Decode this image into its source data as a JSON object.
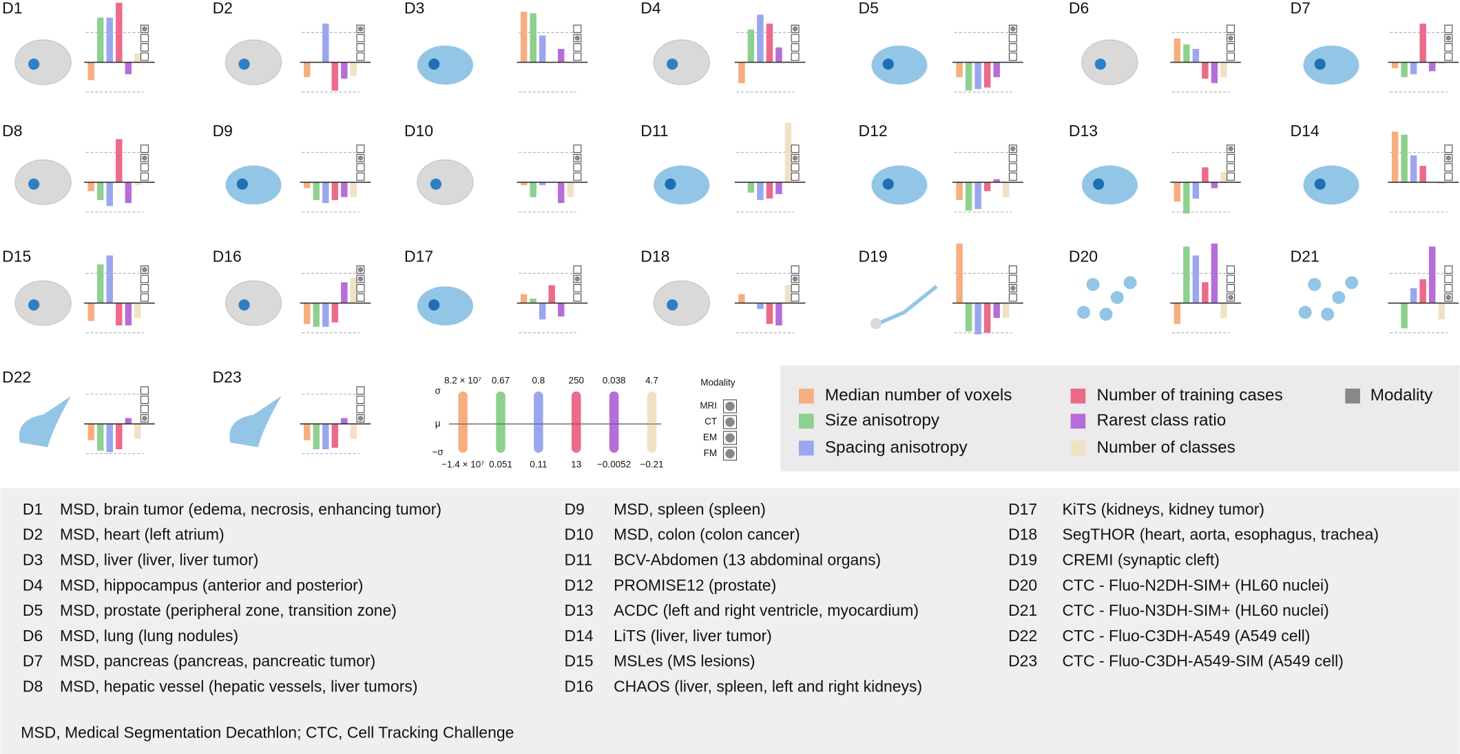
{
  "series_names": [
    "Median number of voxels",
    "Size anisotropy",
    "Spacing anisotropy",
    "Number of training cases",
    "Rarest class ratio",
    "Number of classes"
  ],
  "colors": [
    "#f5ae7f",
    "#8ed08e",
    "#9aa6ee",
    "#ec6a8a",
    "#b56ed8",
    "#f0e1c5"
  ],
  "modality_label": "Modality",
  "modality_color": "#888888",
  "scale": {
    "sigma_labels": [
      "σ",
      "μ",
      "−σ"
    ],
    "top": [
      "8.2 × 10⁷",
      "0.67",
      "0.8",
      "250",
      "0.038",
      "4.7"
    ],
    "bottom": [
      "−1.4 × 10⁷",
      "0.051",
      "0.11",
      "13",
      "−0.0052",
      "−0.21"
    ]
  },
  "modality_key": {
    "title": "Modality",
    "items": [
      "MRI",
      "CT",
      "EM",
      "FM"
    ]
  },
  "datasets": [
    {
      "id": "D1",
      "description": "MSD, brain tumor (edema, necrosis, enhancing tumor)",
      "values": [
        -0.6,
        1.5,
        1.5,
        2.0,
        -0.4,
        0.3
      ],
      "modality": [
        "MRI"
      ]
    },
    {
      "id": "D2",
      "description": "MSD, heart (left atrium)",
      "values": [
        -0.5,
        0,
        1.3,
        -0.95,
        -0.55,
        -0.45
      ],
      "modality": [
        "MRI"
      ]
    },
    {
      "id": "D3",
      "description": "MSD, liver (liver, liver tumor)",
      "values": [
        1.7,
        1.65,
        0.9,
        0,
        0.45,
        0
      ],
      "modality": [
        "CT"
      ]
    },
    {
      "id": "D4",
      "description": "MSD, hippocampus (anterior and posterior)",
      "values": [
        -0.7,
        1.1,
        1.6,
        1.3,
        0.5,
        0.05
      ],
      "modality": [
        "MRI"
      ]
    },
    {
      "id": "D5",
      "description": "MSD, prostate (peripheral zone, transition zone)",
      "values": [
        -0.5,
        -0.95,
        -0.9,
        -0.85,
        -0.5,
        0
      ],
      "modality": [
        "MRI"
      ]
    },
    {
      "id": "D6",
      "description": "MSD, lung (lung nodules)",
      "values": [
        0.8,
        0.6,
        0.45,
        -0.55,
        -0.7,
        -0.5
      ],
      "modality": [
        "CT"
      ]
    },
    {
      "id": "D7",
      "description": "MSD, pancreas (pancreas, pancreatic tumor)",
      "values": [
        -0.2,
        -0.5,
        -0.4,
        1.3,
        -0.3,
        -0.05
      ],
      "modality": [
        "CT"
      ]
    },
    {
      "id": "D8",
      "description": "MSD, hepatic vessel (hepatic vessels, liver tumors)",
      "values": [
        -0.3,
        -0.6,
        -0.8,
        1.45,
        -0.7,
        -0.1
      ],
      "modality": [
        "CT"
      ]
    },
    {
      "id": "D9",
      "description": "MSD, spleen (spleen)",
      "values": [
        -0.2,
        -0.6,
        -0.7,
        -0.6,
        -0.5,
        -0.5
      ],
      "modality": [
        "CT"
      ]
    },
    {
      "id": "D10",
      "description": "MSD, colon (colon cancer)",
      "values": [
        -0.1,
        -0.5,
        -0.1,
        0,
        -0.7,
        -0.5
      ],
      "modality": [
        "CT"
      ]
    },
    {
      "id": "D11",
      "description": "BCV-Abdomen (13 abdominal organs)",
      "values": [
        0,
        -0.35,
        -0.6,
        -0.55,
        -0.4,
        2.0
      ],
      "modality": [
        "CT"
      ]
    },
    {
      "id": "D12",
      "description": "PROMISE12 (prostate)",
      "values": [
        -0.6,
        -0.95,
        -0.9,
        -0.3,
        0.1,
        -0.5
      ],
      "modality": [
        "MRI"
      ]
    },
    {
      "id": "D13",
      "description": "ACDC (left and right ventricle, myocardium)",
      "values": [
        -0.65,
        -1.05,
        -0.55,
        0.5,
        -0.2,
        0.35
      ],
      "modality": [
        "MRI"
      ]
    },
    {
      "id": "D14",
      "description": "LiTS (liver, liver tumor)",
      "values": [
        1.7,
        1.6,
        0.9,
        0.55,
        0,
        -0.05
      ],
      "modality": [
        "CT"
      ]
    },
    {
      "id": "D15",
      "description": "MSLes (MS lesions)",
      "values": [
        -0.6,
        1.3,
        1.6,
        -0.75,
        -0.75,
        -0.5
      ],
      "modality": [
        "MRI"
      ]
    },
    {
      "id": "D16",
      "description": "CHAOS (liver, spleen, left and right kidneys)",
      "values": [
        -0.7,
        -0.8,
        -0.8,
        -0.65,
        0.7,
        0.85
      ],
      "modality": [
        "MRI",
        "CT"
      ]
    },
    {
      "id": "D17",
      "description": "KiTS (kidneys, kidney tumor)",
      "values": [
        0.3,
        0.15,
        -0.55,
        0.6,
        -0.45,
        0
      ],
      "modality": [
        "CT"
      ]
    },
    {
      "id": "D18",
      "description": "SegTHOR (heart, aorta, esophagus, trachea)",
      "values": [
        0.3,
        0,
        -0.2,
        -0.7,
        -0.75,
        0.6
      ],
      "modality": [
        "CT"
      ]
    },
    {
      "id": "D19",
      "description": "CREMI (synaptic cleft)",
      "values": [
        2.0,
        -0.95,
        -1.05,
        -1.0,
        -0.5,
        -0.5
      ],
      "modality": [
        "EM"
      ]
    },
    {
      "id": "D20",
      "description": "CTC - Fluo-N2DH-SIM+ (HL60 nuclei)",
      "values": [
        -0.7,
        1.9,
        1.6,
        0.7,
        2.0,
        -0.5
      ],
      "modality": [
        "FM"
      ]
    },
    {
      "id": "D21",
      "description": "CTC - Fluo-N3DH-SIM+ (HL60 nuclei)",
      "values": [
        0,
        -0.85,
        0.5,
        0.8,
        1.9,
        -0.55
      ],
      "modality": [
        "FM"
      ]
    },
    {
      "id": "D22",
      "description": "CTC - Fluo-C3DH-A549 (A549 cell)",
      "values": [
        -0.55,
        -0.9,
        -0.95,
        -0.85,
        0.2,
        -0.5
      ],
      "modality": [
        "FM"
      ]
    },
    {
      "id": "D23",
      "description": "CTC - Fluo-C3DH-A549-SIM (A549 cell)",
      "values": [
        -0.55,
        -0.85,
        -0.85,
        -0.8,
        0.2,
        -0.5
      ],
      "modality": [
        "FM"
      ]
    }
  ],
  "footnote": "MSD, Medical Segmentation Decathlon; CTC, Cell Tracking Challenge"
}
